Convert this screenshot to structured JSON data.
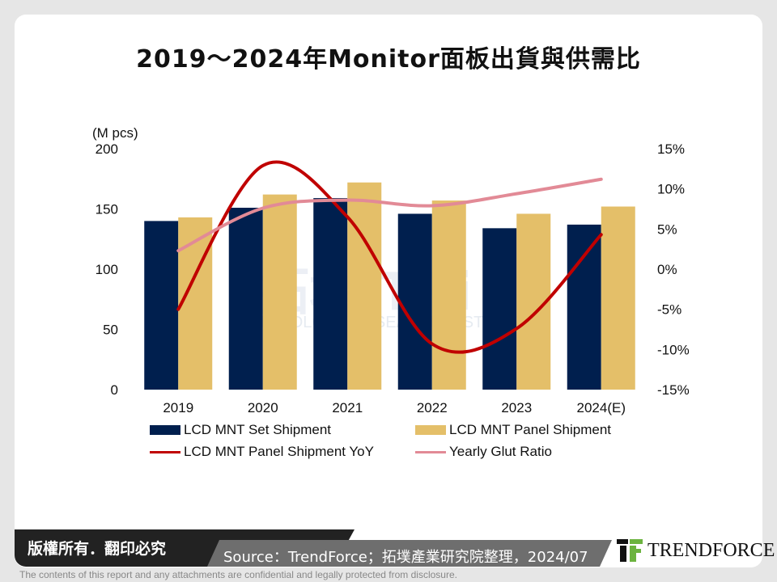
{
  "title": "2019～2024年Monitor面板出貨與供需比",
  "chart_data": {
    "type": "bar",
    "title": "2019～2024年Monitor面板出貨與供需比",
    "categories": [
      "2019",
      "2020",
      "2021",
      "2022",
      "2023",
      "2024(E)"
    ],
    "left_axis": {
      "unit_label": "(M pcs)",
      "range": [
        0,
        200
      ],
      "ticks": [
        "0",
        "50",
        "100",
        "150",
        "200"
      ]
    },
    "right_axis": {
      "range": [
        -15,
        15
      ],
      "ticks": [
        "-15%",
        "-10%",
        "-5%",
        "0%",
        "5%",
        "10%",
        "15%"
      ]
    },
    "series": [
      {
        "name": "LCD MNT Set Shipment",
        "type": "bar",
        "axis": "left",
        "color": "#001f4e",
        "values": [
          140,
          151,
          159,
          146,
          134,
          137
        ]
      },
      {
        "name": "LCD MNT Panel Shipment",
        "type": "bar",
        "axis": "left",
        "color": "#e4bf69",
        "values": [
          143,
          162,
          172,
          157,
          146,
          152
        ]
      },
      {
        "name": "LCD MNT Panel Shipment YoY",
        "type": "line",
        "axis": "right",
        "unit": "%",
        "color": "#c00000",
        "values": [
          -5,
          12.9,
          6.5,
          -9.3,
          -7.4,
          4.3
        ]
      },
      {
        "name": "Yearly Glut Ratio",
        "type": "line",
        "axis": "right",
        "unit": "%",
        "color": "#e28a96",
        "values": [
          2.3,
          7.6,
          8.6,
          7.9,
          9.4,
          11.2
        ]
      }
    ],
    "grid": false,
    "legend": "bottom"
  },
  "watermark": {
    "cn": "拓墣",
    "brand": "TRi",
    "en": "TOPOLOGY RESEARCH INSTITUTE"
  },
  "footer": {
    "copyright": "版權所有．翻印必究",
    "source": "Source：TrendForce；拓墣產業研究院整理，2024/07",
    "logo": "TRENDFORCE",
    "disclaimer": "The contents of this report and any attachments are confidential and legally protected from disclosure."
  }
}
